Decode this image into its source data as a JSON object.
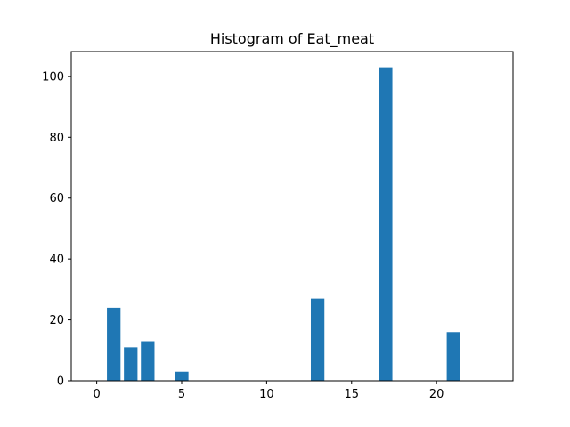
{
  "chart_data": {
    "type": "bar",
    "title": "Histogram of Eat_meat",
    "xlabel": "",
    "ylabel": "",
    "x": [
      1,
      2,
      3,
      5,
      13,
      17,
      21
    ],
    "values": [
      24,
      11,
      13,
      3,
      27,
      103,
      16
    ],
    "bar_width": 0.8,
    "xlim": [
      -1.5,
      24.5
    ],
    "ylim": [
      0,
      108.15
    ],
    "xticks": [
      0,
      5,
      10,
      15,
      20
    ],
    "yticks": [
      0,
      20,
      40,
      60,
      80,
      100
    ],
    "grid": false,
    "legend": "none",
    "bar_color": "#1f77b4"
  }
}
